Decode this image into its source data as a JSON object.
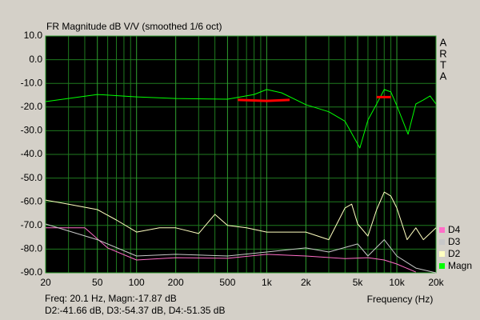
{
  "chart_data": {
    "type": "line",
    "title": "FR Magnitude dB V/V (smoothed 1/6 oct)",
    "brand": [
      "A",
      "R",
      "T",
      "A"
    ],
    "x_label": "Frequency (Hz)",
    "status": [
      "Freq: 20.1 Hz, Magn:-17.87 dB",
      "D2:-41.66 dB, D3:-54.37 dB, D4:-51.35 dB"
    ],
    "xscale": "log",
    "xlim": [
      20,
      20000
    ],
    "xticks": [
      20,
      50,
      100,
      200,
      500,
      {
        "value": 1000,
        "label": "1k"
      },
      {
        "value": 2000,
        "label": "2k"
      },
      {
        "value": 5000,
        "label": "5k"
      },
      {
        "value": 10000,
        "label": "10k"
      },
      {
        "value": 20000,
        "label": "20k"
      }
    ],
    "xminor": [
      30,
      40,
      60,
      70,
      80,
      90,
      300,
      400,
      600,
      700,
      800,
      900,
      3000,
      4000,
      6000,
      7000,
      8000,
      9000
    ],
    "ylim": [
      -90,
      10
    ],
    "yticks": [
      {
        "value": -90,
        "label": "-90.0"
      },
      {
        "value": -80,
        "label": "-80.0"
      },
      {
        "value": -70,
        "label": "-70.0"
      },
      {
        "value": -60,
        "label": "-60.0"
      },
      {
        "value": -50,
        "label": "-50.0"
      },
      {
        "value": -40,
        "label": "-40.0"
      },
      {
        "value": -30,
        "label": "-30.0"
      },
      {
        "value": -20,
        "label": "-20.0"
      },
      {
        "value": -10,
        "label": "-10.0"
      },
      {
        "value": 0,
        "label": "0.0"
      },
      {
        "value": 10,
        "label": "10.0"
      }
    ],
    "grid": true,
    "legend": "bottom-right",
    "series": [
      {
        "name": "D4",
        "color": "#ff6ec7",
        "x": [
          20,
          40,
          60,
          100,
          200,
          500,
          1000,
          2000,
          4000,
          6000,
          8000,
          10000,
          14000
        ],
        "values": [
          -71,
          -71,
          -79.5,
          -84.6,
          -83.6,
          -83.9,
          -82.2,
          -82.9,
          -84,
          -83.6,
          -84.6,
          -86.3,
          -89.7
        ]
      },
      {
        "name": "D3",
        "color": "#c8c8c8",
        "x": [
          20,
          50,
          100,
          200,
          500,
          1000,
          2000,
          3000,
          5000,
          6000,
          8000,
          10000,
          14000,
          20000
        ],
        "values": [
          -69.4,
          -76,
          -82.9,
          -82.2,
          -82.9,
          -81.2,
          -79.5,
          -81.2,
          -77.8,
          -82.9,
          -76,
          -82.9,
          -88,
          -90
        ]
      },
      {
        "name": "D2",
        "color": "#ffffc0",
        "x": [
          20,
          30,
          50,
          70,
          100,
          150,
          200,
          300,
          400,
          500,
          700,
          1000,
          2000,
          3000,
          4000,
          4500,
          5000,
          6000,
          7000,
          8000,
          9000,
          10000,
          12000,
          14000,
          16000,
          20000
        ],
        "values": [
          -59.3,
          -61,
          -63.3,
          -67.7,
          -72.8,
          -71,
          -71,
          -73.4,
          -65.3,
          -70,
          -71,
          -72.8,
          -72.8,
          -76,
          -62.6,
          -61,
          -69.4,
          -74.5,
          -63.3,
          -55.9,
          -57.6,
          -62.6,
          -76,
          -71,
          -76,
          -71
        ]
      },
      {
        "name": "Magn",
        "color": "#00ff00",
        "x": [
          20,
          50,
          100,
          200,
          500,
          800,
          1000,
          1300,
          2000,
          3000,
          4000,
          5200,
          6000,
          7000,
          8000,
          9000,
          10000,
          12200,
          14000,
          16000,
          18000,
          20000
        ],
        "values": [
          -17.7,
          -14.7,
          -15.7,
          -16.4,
          -16.7,
          -14.7,
          -12.6,
          -14,
          -19,
          -22,
          -26,
          -37.3,
          -25.5,
          -18.7,
          -12.6,
          -13.6,
          -19.4,
          -31.5,
          -18.7,
          -17,
          -15.3,
          -18.7
        ]
      }
    ],
    "highlights": [
      {
        "color": "#ff0000",
        "x": [
          600,
          1000,
          1500
        ],
        "values": [
          -17,
          -17.4,
          -17
        ]
      },
      {
        "color": "#ff0000",
        "x": [
          7000,
          9000
        ],
        "values": [
          -15.8,
          -15.8
        ]
      }
    ]
  }
}
